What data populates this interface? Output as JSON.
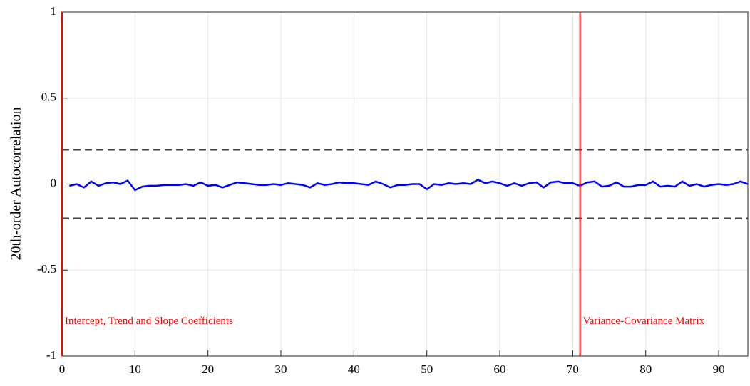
{
  "chart_data": {
    "type": "line",
    "ylabel": "20th-order Autocorrelation",
    "x": [
      1,
      2,
      3,
      4,
      5,
      6,
      7,
      8,
      9,
      10,
      11,
      12,
      13,
      14,
      15,
      16,
      17,
      18,
      19,
      20,
      21,
      22,
      23,
      24,
      25,
      26,
      27,
      28,
      29,
      30,
      31,
      32,
      33,
      34,
      35,
      36,
      37,
      38,
      39,
      40,
      41,
      42,
      43,
      44,
      45,
      46,
      47,
      48,
      49,
      50,
      51,
      52,
      53,
      54,
      55,
      56,
      57,
      58,
      59,
      60,
      61,
      62,
      63,
      64,
      65,
      66,
      67,
      68,
      69,
      70,
      71,
      72,
      73,
      74,
      75,
      76,
      77,
      78,
      79,
      80,
      81,
      82,
      83,
      84,
      85,
      86,
      87,
      88,
      89,
      90,
      91,
      92,
      93,
      94
    ],
    "series": [
      {
        "color": "#0000ff",
        "values": [
          -0.01,
          0,
          -0.02,
          0.015,
          -0.01,
          0.005,
          0.01,
          0,
          0.02,
          -0.035,
          -0.015,
          -0.01,
          -0.01,
          -0.005,
          -0.005,
          -0.005,
          0,
          -0.01,
          0.01,
          -0.01,
          -0.005,
          -0.02,
          -0.005,
          0.01,
          0.005,
          0,
          -0.005,
          -0.005,
          0,
          -0.005,
          0.005,
          0,
          -0.005,
          -0.02,
          0.005,
          -0.005,
          0,
          0.01,
          0.005,
          0.005,
          0,
          -0.005,
          0.015,
          0,
          -0.02,
          -0.005,
          -0.005,
          0,
          0,
          -0.03,
          0,
          -0.005,
          0.005,
          0,
          0.005,
          0,
          0.025,
          0.005,
          0.015,
          0.005,
          -0.01,
          0.005,
          -0.01,
          0.005,
          0.01,
          -0.02,
          0.01,
          0.015,
          0.005,
          0.005,
          -0.01,
          0.01,
          0.015,
          -0.015,
          -0.01,
          0.01,
          -0.015,
          -0.015,
          -0.005,
          -0.005,
          0.015,
          -0.015,
          -0.01,
          -0.015,
          0.015,
          -0.01,
          0,
          -0.015,
          -0.005,
          0,
          -0.005,
          0,
          0.015,
          0
        ]
      }
    ],
    "reference_lines": {
      "color": "#404040",
      "values": [
        0.2,
        -0.2
      ]
    },
    "regions": [
      {
        "x": 0,
        "label": "Intercept, Trend and Slope Coefficients",
        "color": "#ff0000"
      },
      {
        "x": 71,
        "label": "Variance-Covariance Matrix",
        "color": "#ff0000"
      }
    ],
    "xlim": [
      0,
      94
    ],
    "ylim": [
      -1,
      1
    ],
    "xticks": [
      0,
      10,
      20,
      30,
      40,
      50,
      60,
      70,
      80,
      90
    ],
    "yticks": [
      -1,
      -0.5,
      0,
      0.5,
      1
    ],
    "grid": true
  }
}
